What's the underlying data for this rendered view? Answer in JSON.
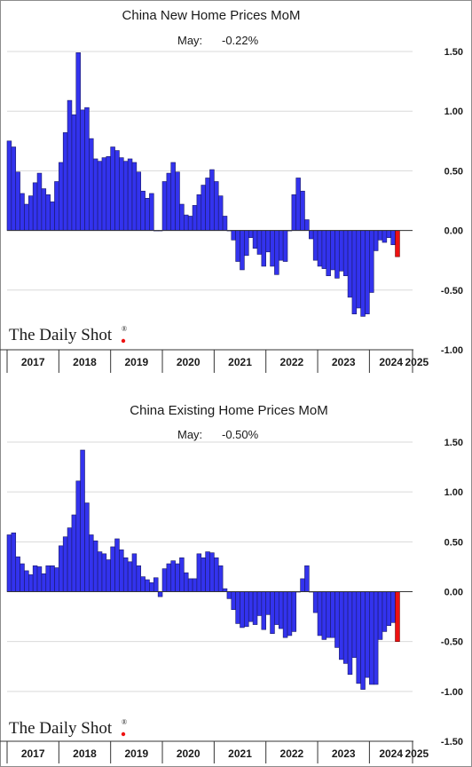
{
  "brand": {
    "logo_text": "The Daily Shot",
    "logo_mark": "®"
  },
  "colors": {
    "bar": "#3333ee",
    "bar_stroke": "#1a1a66",
    "latest_bar": "#ee1111",
    "latest_stroke": "#660000",
    "grid": "#d9d9d9",
    "axis": "#333333"
  },
  "chart_data": [
    {
      "type": "bar",
      "title": "China New Home Prices MoM",
      "latest_label": "May:",
      "latest_value_text": "-0.22%",
      "ylim": [
        -1.0,
        1.5
      ],
      "yticks": [
        1.5,
        1.0,
        0.5,
        0.0,
        -0.5,
        -1.0
      ],
      "ytick_labels": [
        "1.50",
        "1.00",
        "0.50",
        "0.00",
        "-0.50",
        "-1.00"
      ],
      "grid": true,
      "year_labels": [
        "2017",
        "2018",
        "2019",
        "2020",
        "2021",
        "2022",
        "2023",
        "2024",
        "2025"
      ],
      "start": "2017-01",
      "values": [
        0.75,
        0.7,
        0.49,
        0.31,
        0.22,
        0.29,
        0.4,
        0.48,
        0.35,
        0.3,
        0.24,
        0.41,
        0.57,
        0.82,
        1.09,
        0.97,
        1.49,
        1.01,
        1.03,
        0.77,
        0.6,
        0.58,
        0.61,
        0.62,
        0.7,
        0.67,
        0.61,
        0.58,
        0.6,
        0.57,
        0.49,
        0.33,
        0.27,
        0.31,
        0.0,
        0.0,
        0.41,
        0.48,
        0.57,
        0.49,
        0.22,
        0.13,
        0.12,
        0.21,
        0.3,
        0.38,
        0.44,
        0.51,
        0.41,
        0.29,
        0.12,
        0.0,
        -0.08,
        -0.26,
        -0.33,
        -0.21,
        -0.06,
        -0.15,
        -0.2,
        -0.3,
        -0.18,
        -0.3,
        -0.37,
        -0.25,
        -0.26,
        0.0,
        0.3,
        0.44,
        0.33,
        0.09,
        -0.07,
        -0.25,
        -0.3,
        -0.32,
        -0.38,
        -0.33,
        -0.4,
        -0.34,
        -0.38,
        -0.56,
        -0.7,
        -0.65,
        -0.72,
        -0.7,
        -0.52,
        -0.17,
        -0.08,
        -0.1,
        -0.06,
        -0.12,
        -0.22
      ],
      "latest_index": 90
    },
    {
      "type": "bar",
      "title": "China Existing Home Prices MoM",
      "latest_label": "May:",
      "latest_value_text": "-0.50%",
      "ylim": [
        -1.5,
        1.5
      ],
      "yticks": [
        1.5,
        1.0,
        0.5,
        0.0,
        -0.5,
        -1.0,
        -1.5
      ],
      "ytick_labels": [
        "1.50",
        "1.00",
        "0.50",
        "0.00",
        "-0.50",
        "-1.00",
        "-1.50"
      ],
      "grid": true,
      "year_labels": [
        "2017",
        "2018",
        "2019",
        "2020",
        "2021",
        "2022",
        "2023",
        "2024",
        "2025"
      ],
      "start": "2017-01",
      "values": [
        0.57,
        0.59,
        0.35,
        0.28,
        0.21,
        0.17,
        0.26,
        0.25,
        0.18,
        0.26,
        0.26,
        0.24,
        0.46,
        0.55,
        0.64,
        0.77,
        1.11,
        1.42,
        0.89,
        0.57,
        0.51,
        0.4,
        0.38,
        0.32,
        0.45,
        0.53,
        0.42,
        0.34,
        0.3,
        0.38,
        0.26,
        0.15,
        0.12,
        0.09,
        0.14,
        -0.05,
        0.23,
        0.28,
        0.31,
        0.28,
        0.34,
        0.19,
        0.13,
        0.13,
        0.38,
        0.34,
        0.4,
        0.39,
        0.34,
        0.26,
        0.03,
        -0.07,
        -0.18,
        -0.32,
        -0.36,
        -0.35,
        -0.3,
        -0.33,
        -0.24,
        -0.38,
        -0.23,
        -0.42,
        -0.33,
        -0.37,
        -0.46,
        -0.44,
        -0.4,
        0.0,
        0.13,
        0.26,
        0.0,
        -0.21,
        -0.44,
        -0.48,
        -0.46,
        -0.46,
        -0.56,
        -0.68,
        -0.72,
        -0.83,
        -0.66,
        -0.92,
        -0.98,
        -0.86,
        -0.93,
        -0.93,
        -0.48,
        -0.4,
        -0.34,
        -0.31,
        -0.5
      ],
      "latest_index": 90
    }
  ]
}
